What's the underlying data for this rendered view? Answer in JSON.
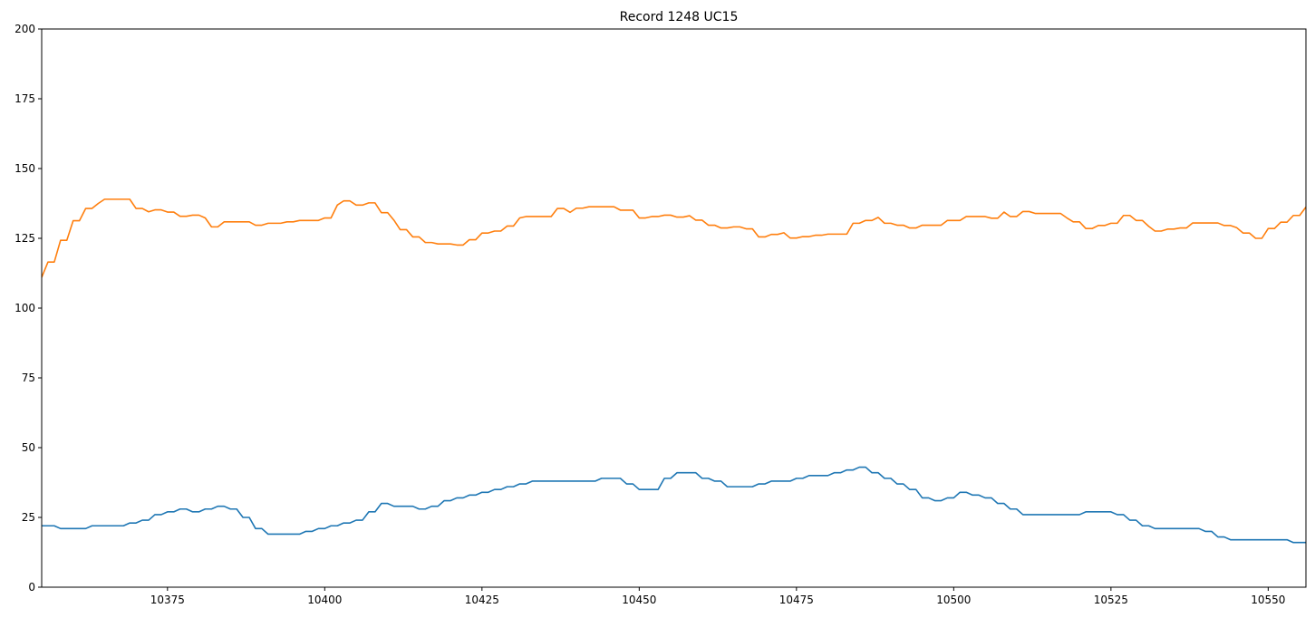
{
  "chart_data": {
    "type": "line",
    "title": "Record 1248 UC15",
    "xlabel": "",
    "ylabel": "",
    "xlim": [
      10355,
      10556
    ],
    "ylim": [
      0,
      200
    ],
    "xticks": [
      10375,
      10400,
      10425,
      10450,
      10475,
      10500,
      10525,
      10550
    ],
    "yticks": [
      0,
      25,
      50,
      75,
      100,
      125,
      150,
      175,
      200
    ],
    "grid": false,
    "legend": "none",
    "series": [
      {
        "color": "#1f77b4",
        "points": [
          [
            10355,
            22
          ],
          [
            10357,
            22
          ],
          [
            10358,
            21
          ],
          [
            10362,
            21
          ],
          [
            10363,
            22
          ],
          [
            10368,
            22
          ],
          [
            10369,
            23
          ],
          [
            10370,
            23
          ],
          [
            10371,
            24
          ],
          [
            10372,
            24
          ],
          [
            10373,
            26
          ],
          [
            10374,
            26
          ],
          [
            10375,
            27
          ],
          [
            10376,
            27
          ],
          [
            10377,
            28
          ],
          [
            10378,
            28
          ],
          [
            10379,
            27
          ],
          [
            10380,
            27
          ],
          [
            10381,
            28
          ],
          [
            10382,
            28
          ],
          [
            10383,
            29
          ],
          [
            10384,
            29
          ],
          [
            10385,
            28
          ],
          [
            10386,
            28
          ],
          [
            10387,
            25
          ],
          [
            10388,
            25
          ],
          [
            10389,
            21
          ],
          [
            10390,
            21
          ],
          [
            10391,
            19
          ],
          [
            10396,
            19
          ],
          [
            10397,
            20
          ],
          [
            10398,
            20
          ],
          [
            10399,
            21
          ],
          [
            10400,
            21
          ],
          [
            10401,
            22
          ],
          [
            10402,
            22
          ],
          [
            10403,
            23
          ],
          [
            10404,
            23
          ],
          [
            10405,
            24
          ],
          [
            10406,
            24
          ],
          [
            10407,
            27
          ],
          [
            10408,
            27
          ],
          [
            10409,
            30
          ],
          [
            10410,
            30
          ],
          [
            10411,
            29
          ],
          [
            10414,
            29
          ],
          [
            10415,
            28
          ],
          [
            10416,
            28
          ],
          [
            10417,
            29
          ],
          [
            10418,
            29
          ],
          [
            10419,
            31
          ],
          [
            10420,
            31
          ],
          [
            10421,
            32
          ],
          [
            10422,
            32
          ],
          [
            10423,
            33
          ],
          [
            10424,
            33
          ],
          [
            10425,
            34
          ],
          [
            10426,
            34
          ],
          [
            10427,
            35
          ],
          [
            10428,
            35
          ],
          [
            10429,
            36
          ],
          [
            10430,
            36
          ],
          [
            10431,
            37
          ],
          [
            10432,
            37
          ],
          [
            10433,
            38
          ],
          [
            10443,
            38
          ],
          [
            10444,
            39
          ],
          [
            10447,
            39
          ],
          [
            10448,
            37
          ],
          [
            10449,
            37
          ],
          [
            10450,
            35
          ],
          [
            10453,
            35
          ],
          [
            10454,
            39
          ],
          [
            10455,
            39
          ],
          [
            10456,
            41
          ],
          [
            10459,
            41
          ],
          [
            10460,
            39
          ],
          [
            10461,
            39
          ],
          [
            10462,
            38
          ],
          [
            10463,
            38
          ],
          [
            10464,
            36
          ],
          [
            10468,
            36
          ],
          [
            10469,
            37
          ],
          [
            10470,
            37
          ],
          [
            10471,
            38
          ],
          [
            10474,
            38
          ],
          [
            10475,
            39
          ],
          [
            10476,
            39
          ],
          [
            10477,
            40
          ],
          [
            10480,
            40
          ],
          [
            10481,
            41
          ],
          [
            10482,
            41
          ],
          [
            10483,
            42
          ],
          [
            10484,
            42
          ],
          [
            10485,
            43
          ],
          [
            10486,
            43
          ],
          [
            10487,
            41
          ],
          [
            10488,
            41
          ],
          [
            10489,
            39
          ],
          [
            10490,
            39
          ],
          [
            10491,
            37
          ],
          [
            10492,
            37
          ],
          [
            10493,
            35
          ],
          [
            10494,
            35
          ],
          [
            10495,
            32
          ],
          [
            10496,
            32
          ],
          [
            10497,
            31
          ],
          [
            10498,
            31
          ],
          [
            10499,
            32
          ],
          [
            10500,
            32
          ],
          [
            10501,
            34
          ],
          [
            10502,
            34
          ],
          [
            10503,
            33
          ],
          [
            10504,
            33
          ],
          [
            10505,
            32
          ],
          [
            10506,
            32
          ],
          [
            10507,
            30
          ],
          [
            10508,
            30
          ],
          [
            10509,
            28
          ],
          [
            10510,
            28
          ],
          [
            10511,
            26
          ],
          [
            10520,
            26
          ],
          [
            10521,
            27
          ],
          [
            10525,
            27
          ],
          [
            10526,
            26
          ],
          [
            10527,
            26
          ],
          [
            10528,
            24
          ],
          [
            10529,
            24
          ],
          [
            10530,
            22
          ],
          [
            10531,
            22
          ],
          [
            10532,
            21
          ],
          [
            10539,
            21
          ],
          [
            10540,
            20
          ],
          [
            10541,
            20
          ],
          [
            10542,
            18
          ],
          [
            10543,
            18
          ],
          [
            10544,
            17
          ],
          [
            10553,
            17
          ],
          [
            10554,
            16
          ],
          [
            10559,
            16
          ],
          [
            10560,
            17
          ],
          [
            10563,
            17
          ]
        ]
      },
      {
        "color": "#ff7f0e",
        "points": [
          [
            10355,
            111
          ],
          [
            10356,
            116.5
          ],
          [
            10357,
            116.5
          ],
          [
            10358,
            124.3
          ],
          [
            10359,
            124.3
          ],
          [
            10360,
            131.3
          ],
          [
            10361,
            131.3
          ],
          [
            10362,
            135.7
          ],
          [
            10363,
            135.7
          ],
          [
            10364,
            137.5
          ],
          [
            10365,
            139
          ],
          [
            10369,
            139
          ],
          [
            10370,
            135.7
          ],
          [
            10371,
            135.7
          ],
          [
            10372,
            134.5
          ],
          [
            10373,
            135.2
          ],
          [
            10374,
            135.2
          ],
          [
            10375,
            134.4
          ],
          [
            10376,
            134.4
          ],
          [
            10377,
            132.9
          ],
          [
            10378,
            132.9
          ],
          [
            10379,
            133.3
          ],
          [
            10380,
            133.3
          ],
          [
            10381,
            132.3
          ],
          [
            10382,
            129.1
          ],
          [
            10383,
            129.1
          ],
          [
            10384,
            130.9
          ],
          [
            10388,
            130.9
          ],
          [
            10389,
            129.7
          ],
          [
            10390,
            129.7
          ],
          [
            10391,
            130.4
          ],
          [
            10393,
            130.4
          ],
          [
            10394,
            130.9
          ],
          [
            10395,
            130.9
          ],
          [
            10396,
            131.4
          ],
          [
            10399,
            131.4
          ],
          [
            10400,
            132.3
          ],
          [
            10401,
            132.3
          ],
          [
            10402,
            136.9
          ],
          [
            10403,
            138.4
          ],
          [
            10404,
            138.4
          ],
          [
            10405,
            136.9
          ],
          [
            10406,
            136.9
          ],
          [
            10407,
            137.7
          ],
          [
            10408,
            137.7
          ],
          [
            10409,
            134.2
          ],
          [
            10410,
            134.2
          ],
          [
            10411,
            131.5
          ],
          [
            10412,
            128.1
          ],
          [
            10413,
            128.1
          ],
          [
            10414,
            125.5
          ],
          [
            10415,
            125.5
          ],
          [
            10416,
            123.5
          ],
          [
            10417,
            123.5
          ],
          [
            10418,
            123
          ],
          [
            10420,
            123
          ],
          [
            10421,
            122.6
          ],
          [
            10422,
            122.6
          ],
          [
            10423,
            124.5
          ],
          [
            10424,
            124.5
          ],
          [
            10425,
            126.9
          ],
          [
            10426,
            126.9
          ],
          [
            10427,
            127.6
          ],
          [
            10428,
            127.6
          ],
          [
            10429,
            129.4
          ],
          [
            10430,
            129.4
          ],
          [
            10431,
            132.3
          ],
          [
            10432,
            132.8
          ],
          [
            10436,
            132.8
          ],
          [
            10437,
            135.7
          ],
          [
            10438,
            135.7
          ],
          [
            10439,
            134.3
          ],
          [
            10440,
            135.8
          ],
          [
            10441,
            135.8
          ],
          [
            10442,
            136.3
          ],
          [
            10446,
            136.3
          ],
          [
            10447,
            135.1
          ],
          [
            10449,
            135.1
          ],
          [
            10450,
            132.3
          ],
          [
            10451,
            132.3
          ],
          [
            10452,
            132.8
          ],
          [
            10453,
            132.8
          ],
          [
            10454,
            133.3
          ],
          [
            10455,
            133.3
          ],
          [
            10456,
            132.6
          ],
          [
            10457,
            132.6
          ],
          [
            10458,
            133.1
          ],
          [
            10459,
            131.5
          ],
          [
            10460,
            131.5
          ],
          [
            10461,
            129.7
          ],
          [
            10462,
            129.7
          ],
          [
            10463,
            128.7
          ],
          [
            10464,
            128.7
          ],
          [
            10465,
            129.1
          ],
          [
            10466,
            129.1
          ],
          [
            10467,
            128.4
          ],
          [
            10468,
            128.4
          ],
          [
            10469,
            125.5
          ],
          [
            10470,
            125.5
          ],
          [
            10471,
            126.4
          ],
          [
            10472,
            126.4
          ],
          [
            10473,
            127
          ],
          [
            10474,
            125.1
          ],
          [
            10475,
            125.1
          ],
          [
            10476,
            125.6
          ],
          [
            10477,
            125.6
          ],
          [
            10478,
            126.1
          ],
          [
            10479,
            126.1
          ],
          [
            10480,
            126.5
          ],
          [
            10483,
            126.5
          ],
          [
            10484,
            130.4
          ],
          [
            10485,
            130.4
          ],
          [
            10486,
            131.4
          ],
          [
            10487,
            131.4
          ],
          [
            10488,
            132.5
          ],
          [
            10489,
            130.4
          ],
          [
            10490,
            130.4
          ],
          [
            10491,
            129.7
          ],
          [
            10492,
            129.7
          ],
          [
            10493,
            128.7
          ],
          [
            10494,
            128.7
          ],
          [
            10495,
            129.7
          ],
          [
            10498,
            129.7
          ],
          [
            10499,
            131.4
          ],
          [
            10501,
            131.4
          ],
          [
            10502,
            132.8
          ],
          [
            10505,
            132.8
          ],
          [
            10506,
            132.2
          ],
          [
            10507,
            132.2
          ],
          [
            10508,
            134.4
          ],
          [
            10509,
            132.8
          ],
          [
            10510,
            132.8
          ],
          [
            10511,
            134.6
          ],
          [
            10512,
            134.6
          ],
          [
            10513,
            133.9
          ],
          [
            10517,
            133.9
          ],
          [
            10518,
            132.3
          ],
          [
            10519,
            130.9
          ],
          [
            10520,
            130.9
          ],
          [
            10521,
            128.5
          ],
          [
            10522,
            128.5
          ],
          [
            10523,
            129.6
          ],
          [
            10524,
            129.6
          ],
          [
            10525,
            130.4
          ],
          [
            10526,
            130.4
          ],
          [
            10527,
            133.2
          ],
          [
            10528,
            133.2
          ],
          [
            10529,
            131.4
          ],
          [
            10530,
            131.4
          ],
          [
            10531,
            129.3
          ],
          [
            10532,
            127.6
          ],
          [
            10533,
            127.6
          ],
          [
            10534,
            128.3
          ],
          [
            10535,
            128.3
          ],
          [
            10536,
            128.7
          ],
          [
            10537,
            128.7
          ],
          [
            10538,
            130.5
          ],
          [
            10542,
            130.5
          ],
          [
            10543,
            129.6
          ],
          [
            10544,
            129.6
          ],
          [
            10545,
            128.8
          ],
          [
            10546,
            126.9
          ],
          [
            10547,
            126.9
          ],
          [
            10548,
            125
          ],
          [
            10549,
            125
          ],
          [
            10550,
            128.5
          ],
          [
            10551,
            128.5
          ],
          [
            10552,
            130.8
          ],
          [
            10553,
            130.8
          ],
          [
            10554,
            133.2
          ],
          [
            10555,
            133.2
          ],
          [
            10556,
            136.2
          ],
          [
            10557,
            136.9
          ],
          [
            10561,
            136.9
          ],
          [
            10562,
            135.6
          ]
        ]
      }
    ]
  }
}
